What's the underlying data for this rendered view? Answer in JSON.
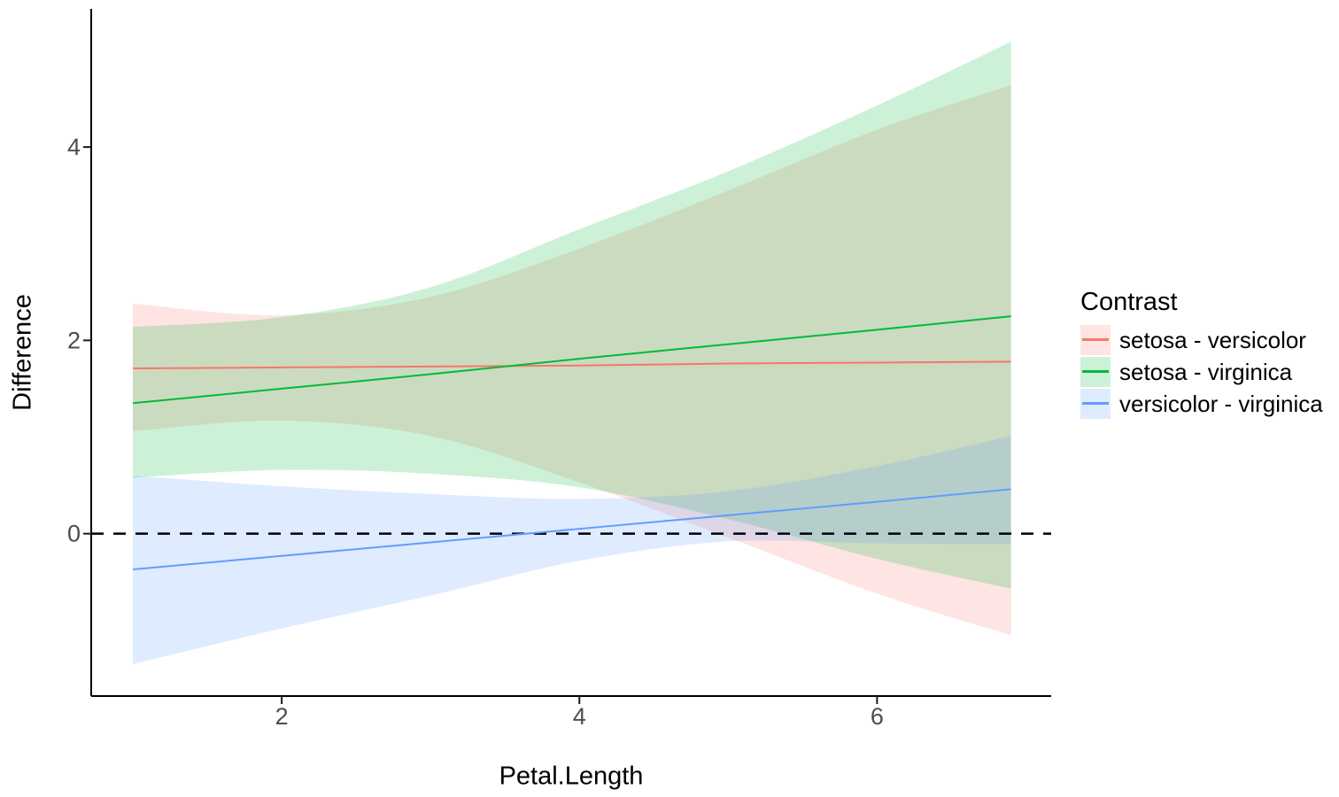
{
  "chart_data": {
    "type": "line",
    "title": "",
    "xlabel": "Petal.Length",
    "ylabel": "Difference",
    "legend_title": "Contrast",
    "legend_position": "right",
    "background": "#FFFFFF",
    "axis_color": "#000000",
    "tick_label_color": "#4D4D4D",
    "grid": false,
    "reference_line": {
      "y": 0,
      "style": "dashed",
      "color": "#000000"
    },
    "x": [
      1,
      2,
      3,
      4,
      5,
      6,
      6.9
    ],
    "xlim": [
      0.72,
      7.17
    ],
    "ylim": [
      -1.68,
      5.43
    ],
    "xticks": [
      "2",
      "4",
      "6"
    ],
    "yticks": [
      "0",
      "2",
      "4"
    ],
    "xtick_values": [
      2,
      4,
      6
    ],
    "ytick_values": [
      0,
      2,
      4
    ],
    "ribbon_opacity": 0.2,
    "series": [
      {
        "name": "setosa - versicolor",
        "color": "#F8766D",
        "line": [
          1.71,
          1.72,
          1.73,
          1.74,
          1.76,
          1.77,
          1.78
        ],
        "upper": [
          2.38,
          2.26,
          2.45,
          2.95,
          3.55,
          4.18,
          4.64
        ],
        "lower": [
          1.06,
          1.17,
          1.01,
          0.53,
          -0.04,
          -0.62,
          -1.05
        ]
      },
      {
        "name": "setosa - virginica",
        "color": "#00BA38",
        "line": [
          1.35,
          1.5,
          1.65,
          1.81,
          1.96,
          2.11,
          2.25
        ],
        "upper": [
          2.14,
          2.24,
          2.55,
          3.15,
          3.75,
          4.43,
          5.09
        ],
        "lower": [
          0.58,
          0.66,
          0.62,
          0.48,
          0.15,
          -0.26,
          -0.57
        ]
      },
      {
        "name": "versicolor - virginica",
        "color": "#619CFF",
        "line": [
          -0.37,
          -0.23,
          -0.09,
          0.05,
          0.19,
          0.33,
          0.46
        ],
        "upper": [
          0.6,
          0.49,
          0.41,
          0.36,
          0.44,
          0.7,
          1.01
        ],
        "lower": [
          -1.35,
          -0.98,
          -0.64,
          -0.28,
          -0.08,
          -0.1,
          -0.11
        ]
      }
    ]
  }
}
